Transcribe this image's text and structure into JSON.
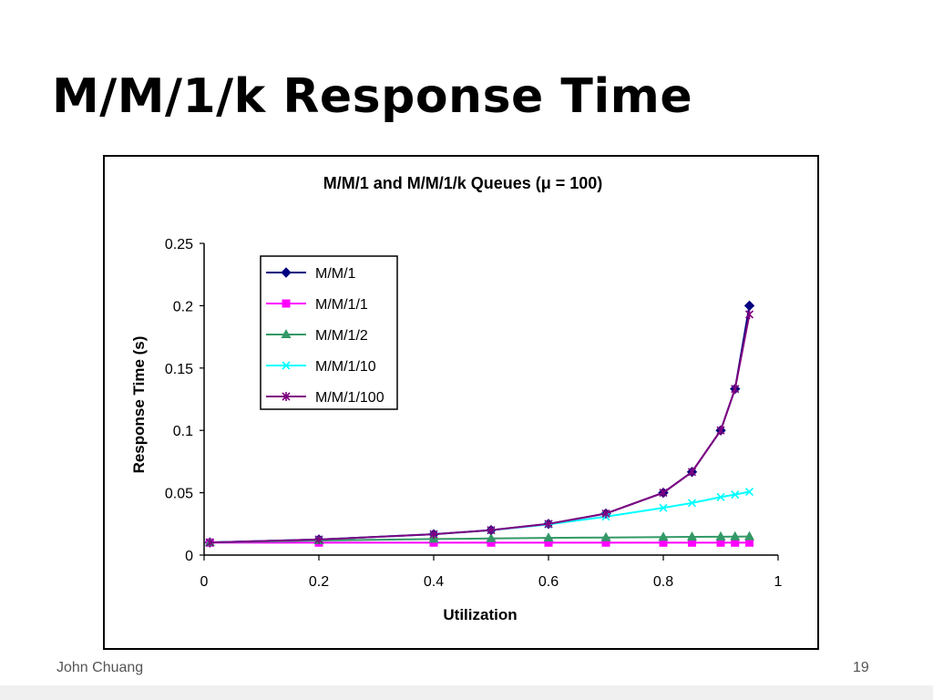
{
  "slide": {
    "title": "M/M/1/k Response Time",
    "footer_author": "John Chuang",
    "page_number": "19"
  },
  "chart_data": {
    "type": "line",
    "title": "M/M/1 and M/M/1/k Queues (μ = 100)",
    "xlabel": "Utilization",
    "ylabel": "Response Time (s)",
    "xlim": [
      0,
      1
    ],
    "ylim": [
      0,
      0.25
    ],
    "xticks": [
      0,
      0.2,
      0.4,
      0.6,
      0.8,
      1
    ],
    "xtick_labels": [
      "0",
      "0.2",
      "0.4",
      "0.6",
      "0.8",
      "1"
    ],
    "yticks": [
      0,
      0.05,
      0.1,
      0.15,
      0.2,
      0.25
    ],
    "ytick_labels": [
      "0",
      "0.05",
      "0.1",
      "0.15",
      "0.2",
      "0.25"
    ],
    "grid": false,
    "legend_position": "top-left",
    "x": [
      0.01,
      0.2,
      0.4,
      0.5,
      0.6,
      0.7,
      0.8,
      0.85,
      0.9,
      0.925,
      0.95
    ],
    "series": [
      {
        "name": "M/M/1",
        "color": "#000080",
        "marker": "diamond",
        "values": [
          0.0101,
          0.0125,
          0.0167,
          0.02,
          0.025,
          0.0333,
          0.05,
          0.0667,
          0.1,
          0.1333,
          0.2
        ]
      },
      {
        "name": "M/M/1/1",
        "color": "#ff00ff",
        "marker": "square",
        "values": [
          0.01,
          0.01,
          0.01,
          0.01,
          0.01,
          0.01,
          0.01,
          0.01,
          0.01,
          0.01,
          0.01
        ]
      },
      {
        "name": "M/M/1/2",
        "color": "#339966",
        "marker": "triangle",
        "values": [
          0.0101,
          0.0117,
          0.0129,
          0.0133,
          0.0138,
          0.0141,
          0.0144,
          0.0146,
          0.0147,
          0.0148,
          0.0149
        ]
      },
      {
        "name": "M/M/1/10",
        "color": "#00ffff",
        "marker": "x",
        "values": [
          0.0101,
          0.0125,
          0.0167,
          0.0199,
          0.0246,
          0.0308,
          0.0379,
          0.0418,
          0.0465,
          0.0485,
          0.0508
        ]
      },
      {
        "name": "M/M/1/100",
        "color": "#800080",
        "marker": "star",
        "values": [
          0.0101,
          0.0125,
          0.0167,
          0.02,
          0.025,
          0.0333,
          0.05,
          0.0667,
          0.1,
          0.1333,
          0.193
        ]
      }
    ]
  }
}
